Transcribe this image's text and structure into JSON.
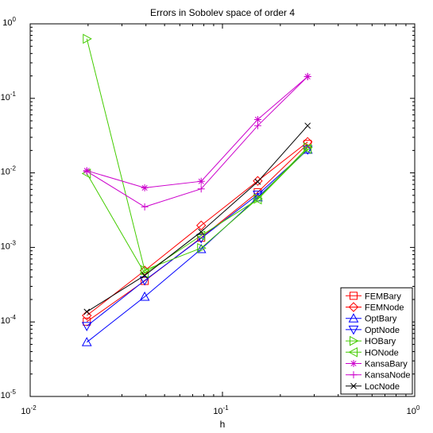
{
  "chart_data": {
    "type": "line",
    "title": "Errors in Sobolev space of order 4",
    "xlabel": "h",
    "ylabel": "",
    "xscale": "log",
    "yscale": "log",
    "xlim": [
      0.01,
      1
    ],
    "ylim": [
      1e-05,
      1
    ],
    "grid": false,
    "legend_position": "bottom-right",
    "x_ticks": [
      {
        "base": "10",
        "exp": "-2"
      },
      {
        "base": "10",
        "exp": "-1"
      },
      {
        "base": "10",
        "exp": "0"
      }
    ],
    "y_ticks": [
      {
        "base": "10",
        "exp": "-5"
      },
      {
        "base": "10",
        "exp": "-4"
      },
      {
        "base": "10",
        "exp": "-3"
      },
      {
        "base": "10",
        "exp": "-2"
      },
      {
        "base": "10",
        "exp": "-1"
      },
      {
        "base": "10",
        "exp": "0"
      }
    ],
    "x": [
      0.0197,
      0.0394,
      0.0775,
      0.1526,
      0.2773
    ],
    "series": [
      {
        "name": "FEMBary",
        "color": "#ff0000",
        "marker": "square",
        "values": [
          0.000101,
          0.000355,
          0.00135,
          0.0055,
          0.0245
        ]
      },
      {
        "name": "FEMNode",
        "color": "#ff0000",
        "marker": "diamond",
        "values": [
          0.000122,
          0.000488,
          0.00197,
          0.0078,
          0.026
        ]
      },
      {
        "name": "OptBary",
        "color": "#0000ff",
        "marker": "triangle-up",
        "values": [
          5.35e-05,
          0.000218,
          0.00095,
          0.0047,
          0.0205
        ]
      },
      {
        "name": "OptNode",
        "color": "#0000ff",
        "marker": "triangle-down",
        "values": [
          8.8e-05,
          0.00036,
          0.00133,
          0.0051,
          0.0205
        ]
      },
      {
        "name": "HOBary",
        "color": "#44cc00",
        "marker": "triangle-right",
        "values": [
          0.63,
          0.000495,
          0.00098,
          0.0045,
          0.022
        ]
      },
      {
        "name": "HONode",
        "color": "#44cc00",
        "marker": "triangle-left",
        "values": [
          0.0098,
          0.00045,
          0.00144,
          0.0044,
          0.021
        ]
      },
      {
        "name": "KansaBary",
        "color": "#cc00cc",
        "marker": "asterisk",
        "values": [
          0.0107,
          0.0063,
          0.0077,
          0.052,
          0.196
        ]
      },
      {
        "name": "KansaNode",
        "color": "#cc00cc",
        "marker": "plus",
        "values": [
          0.0105,
          0.0035,
          0.0061,
          0.043,
          0.196
        ]
      },
      {
        "name": "LocNode",
        "color": "#000000",
        "marker": "x",
        "values": [
          0.000137,
          0.00042,
          0.00162,
          0.0076,
          0.043
        ]
      }
    ]
  }
}
